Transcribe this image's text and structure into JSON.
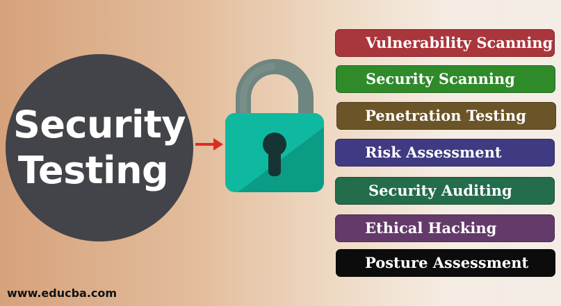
{
  "title": {
    "line1": "Security",
    "line2": "Testing"
  },
  "icons": {
    "arrow": "right-arrow-icon",
    "lock": "padlock-icon"
  },
  "colors": {
    "circle": "#424449",
    "arrow": "#e02b25",
    "lock_shackle": "#6e8580",
    "lock_body": "#0fb99f",
    "lock_body_dark": "#0a9c84",
    "keyhole": "#173434"
  },
  "types": [
    {
      "label": "Vulnerability Scanning",
      "color": "#a9363b"
    },
    {
      "label": "Security Scanning",
      "color": "#2f8a2a"
    },
    {
      "label": "Penetration Testing",
      "color": "#6b5528"
    },
    {
      "label": "Risk Assessment",
      "color": "#403a82"
    },
    {
      "label": "Security Auditing",
      "color": "#236c4c"
    },
    {
      "label": "Ethical Hacking",
      "color": "#643a6a"
    },
    {
      "label": "Posture Assessment",
      "color": "#0c0c0c"
    }
  ],
  "footer": {
    "website": "www.educba.com"
  }
}
